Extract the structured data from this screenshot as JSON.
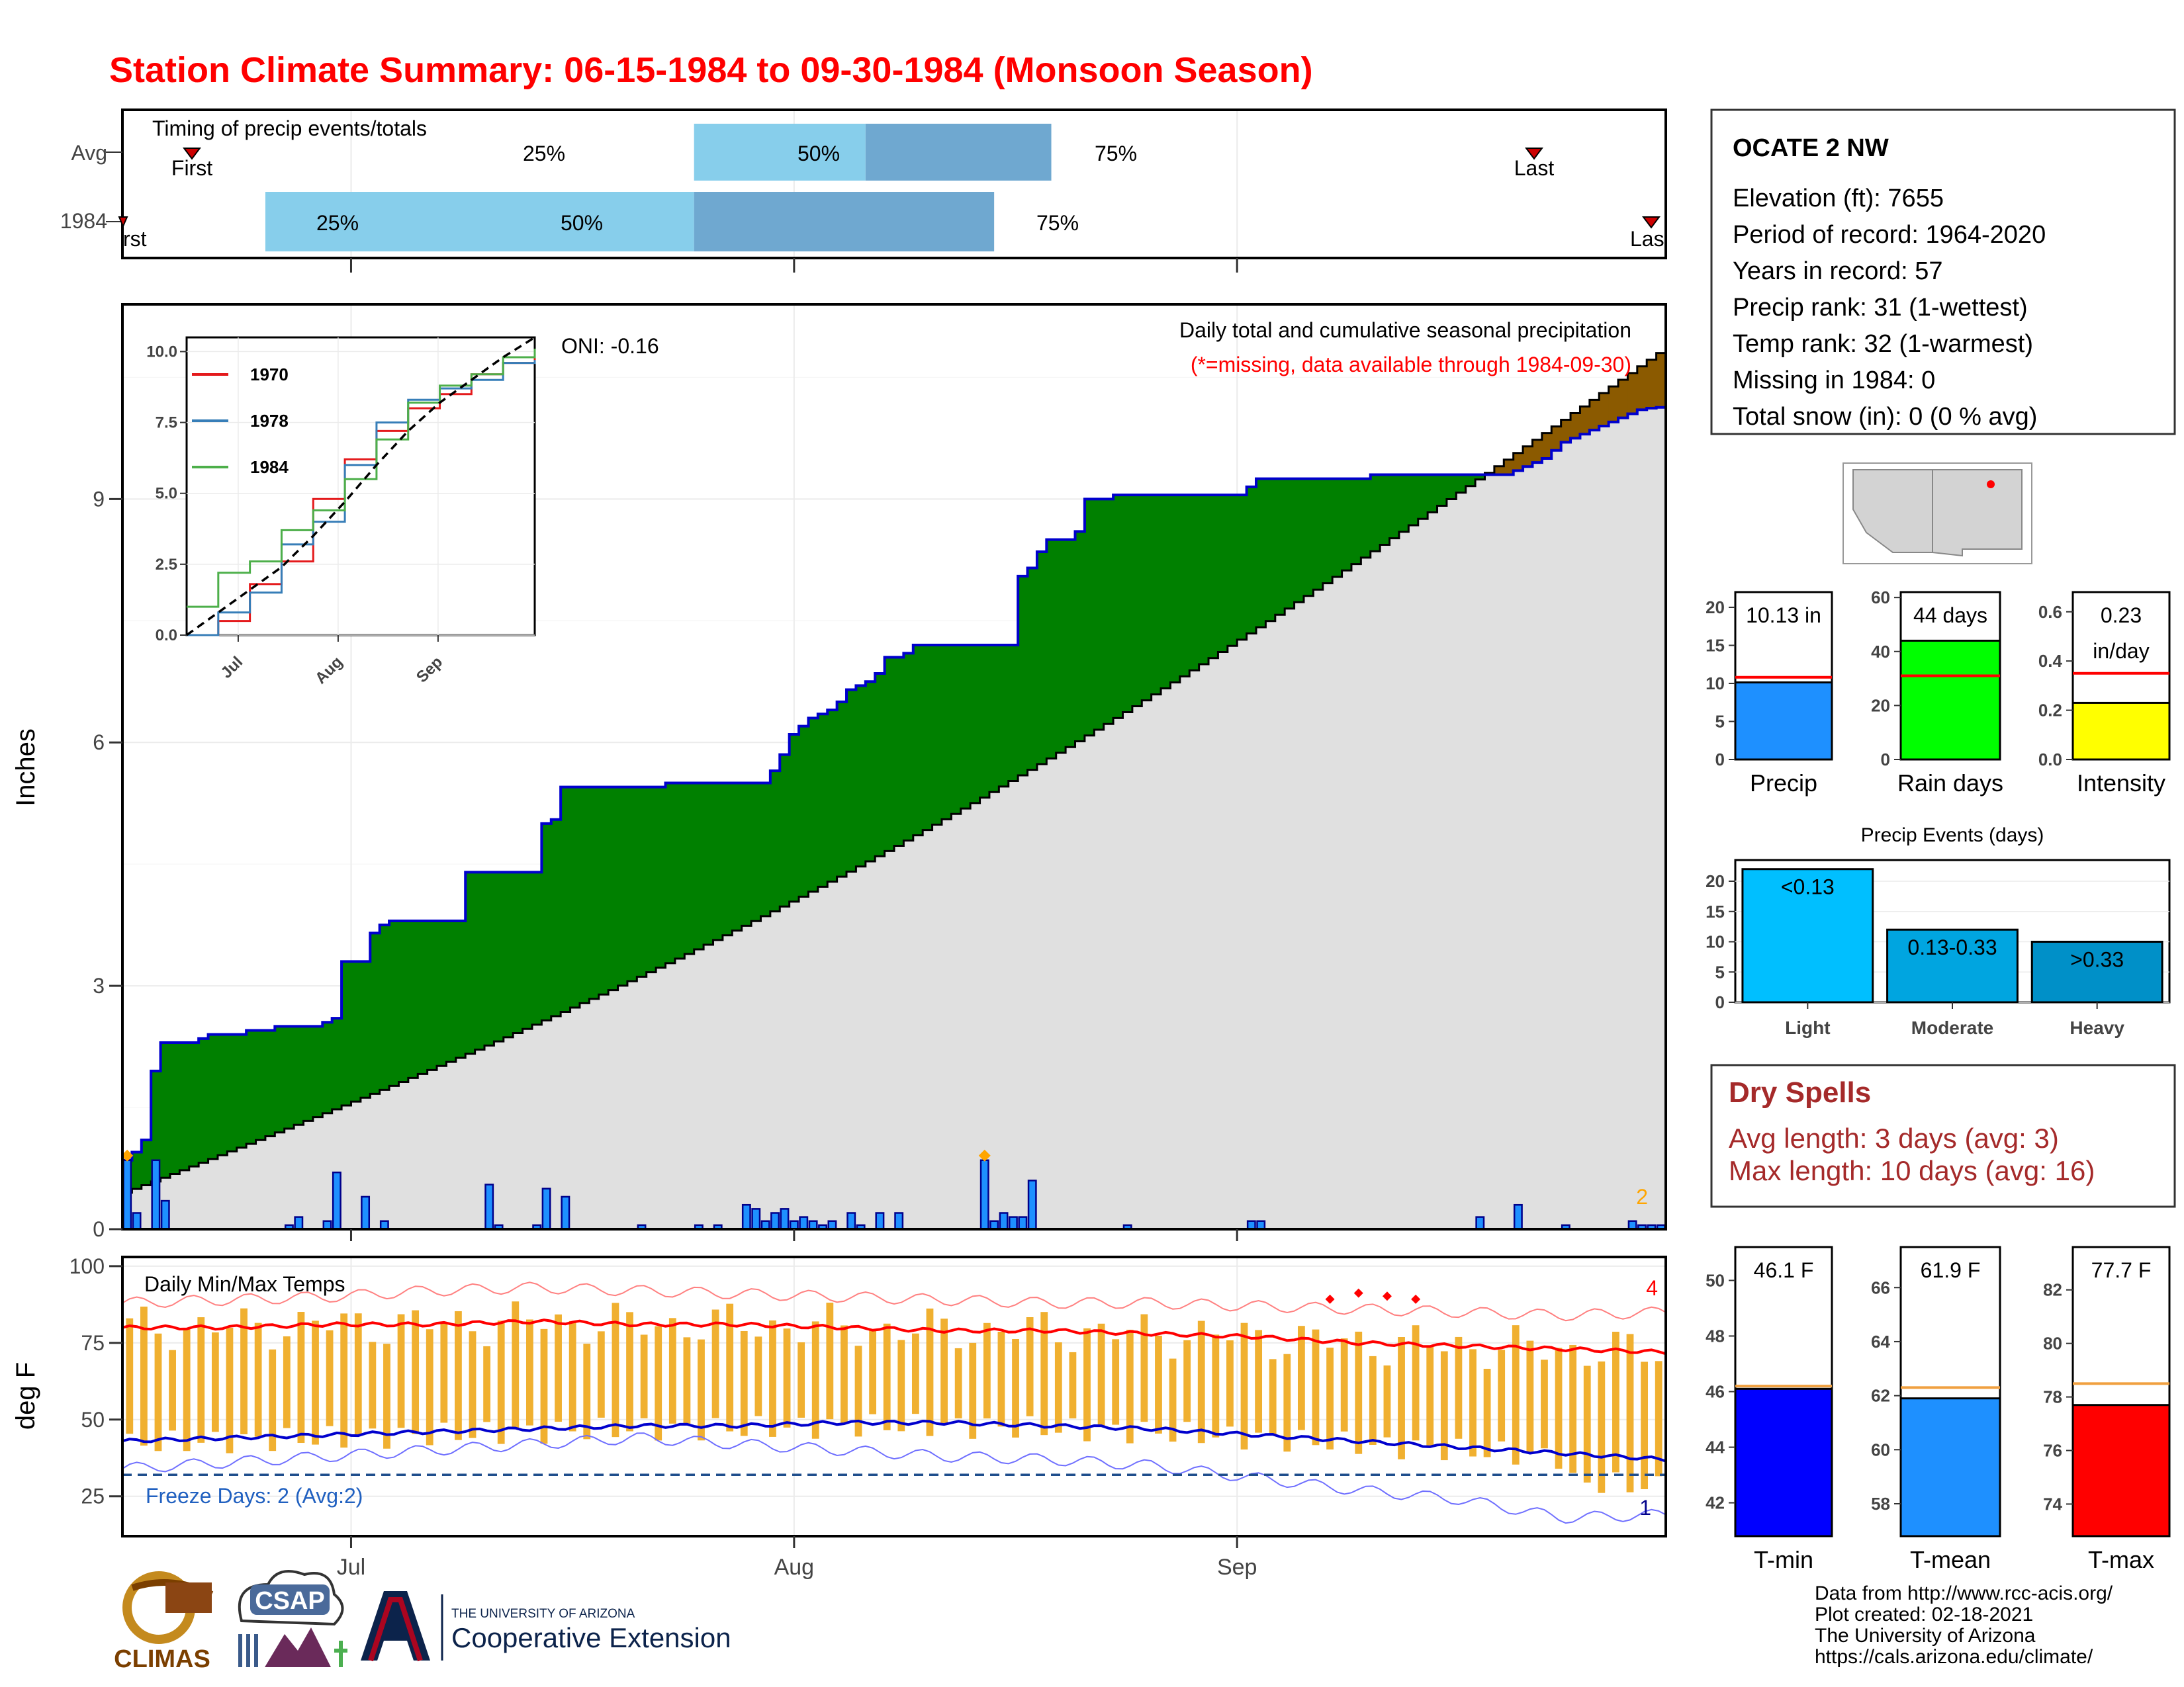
{
  "title": "Station Climate Summary: 06-15-1984 to 09-30-1984 (Monsoon Season)",
  "colors": {
    "title": "#ff0000",
    "light_blue": "#87ceeb",
    "mid_blue": "#6fa8d0",
    "green": "#008000",
    "brown": "#8b5a00",
    "gray_fill": "#e0e0e0",
    "avg_line_blue": "#0000cd",
    "bar_blue": "#1e90ff",
    "temp_orange": "#f0b030",
    "dry_spell_red": "#a52a2a"
  },
  "timing_panel": {
    "title": "Timing of precip events/totals",
    "row_labels": [
      "Avg",
      "1984"
    ],
    "avg": {
      "first": "First",
      "last": "Last",
      "q25": "25%",
      "q50": "50%",
      "q75": "75%"
    },
    "year": {
      "first": "rst",
      "last": "Las",
      "q25": "25%",
      "q50": "50%",
      "q75": "75%"
    }
  },
  "main_panel": {
    "ylabel": "Inches",
    "legend_title": "Daily total and cumulative seasonal precipitation",
    "missing_note": "(*=missing, data available through 1984-09-30)",
    "oni": "ONI: -0.16",
    "y_ticks": [
      "0",
      "3",
      "6",
      "9"
    ],
    "x_ticks": [
      "Jul",
      "Aug",
      "Sep"
    ],
    "corner_value": "2"
  },
  "inset": {
    "y_ticks": [
      "0.0",
      "2.5",
      "5.0",
      "7.5",
      "10.0"
    ],
    "x_ticks": [
      "Jul",
      "Aug",
      "Sep"
    ],
    "legend": [
      {
        "name": "1970",
        "color": "#e41a1c"
      },
      {
        "name": "1978",
        "color": "#377eb8"
      },
      {
        "name": "1984",
        "color": "#4daf4a"
      }
    ]
  },
  "temp_panel": {
    "title": "Daily Min/Max Temps",
    "ylabel": "deg F",
    "y_ticks": [
      "25",
      "50",
      "75",
      "100"
    ],
    "freeze_note": "Freeze Days: 2 (Avg:2)",
    "record_high_count": "4",
    "record_low_count": "1"
  },
  "station_info": {
    "name": "OCATE 2 NW",
    "lines": [
      "Elevation (ft): 7655",
      "Period of record: 1964-2020",
      "Years in record: 57",
      "Precip rank: 31 (1-wettest)",
      "Temp rank: 32 (1-warmest)",
      "Missing in 1984: 0",
      "Total snow (in): 0 (0 % avg)"
    ]
  },
  "summary_bars": [
    {
      "label": "Precip",
      "value_text": "10.13 in",
      "value": 10.13,
      "avg": 10.8,
      "ymax": 22,
      "ticks": [
        "0",
        "5",
        "10",
        "15",
        "20"
      ],
      "tick_values": [
        0,
        5,
        10,
        15,
        20
      ],
      "color": "#1e90ff"
    },
    {
      "label": "Rain days",
      "value_text": "44 days",
      "value": 44,
      "avg": 31,
      "ymax": 62,
      "ticks": [
        "0",
        "20",
        "40",
        "60"
      ],
      "tick_values": [
        0,
        20,
        40,
        60
      ],
      "color": "#00ff00"
    },
    {
      "label": "Intensity",
      "value_text": "0.23",
      "value_text2": "in/day",
      "value": 0.23,
      "avg": 0.35,
      "ymax": 0.68,
      "ticks": [
        "0.0",
        "0.2",
        "0.4",
        "0.6"
      ],
      "tick_values": [
        0,
        0.2,
        0.4,
        0.6
      ],
      "color": "#ffff00"
    }
  ],
  "precip_events": {
    "title": "Precip Events (days)",
    "categories": [
      "Light",
      "Moderate",
      "Heavy"
    ],
    "bar_labels": [
      "<0.13",
      "0.13-0.33",
      ">0.33"
    ],
    "values": [
      22,
      12,
      10
    ],
    "ticks": [
      "0",
      "5",
      "10",
      "15",
      "20"
    ],
    "colors": [
      "#00bfff",
      "#00a5e0",
      "#0090c8"
    ]
  },
  "dry_spells": {
    "title": "Dry Spells",
    "lines": [
      "Avg length: 3 days (avg: 3)",
      "Max length: 10 days (avg: 16)"
    ]
  },
  "temp_bars": [
    {
      "label": "T-min",
      "value_text": "46.1 F",
      "value": 46.1,
      "avg": 46.2,
      "ymin": 40.8,
      "ymax": 51.2,
      "ticks": [
        "42",
        "44",
        "46",
        "48",
        "50"
      ],
      "tick_values": [
        42,
        44,
        46,
        48,
        50
      ],
      "color": "#0000ff"
    },
    {
      "label": "T-mean",
      "value_text": "61.9 F",
      "value": 61.9,
      "avg": 62.3,
      "ymin": 56.8,
      "ymax": 67.5,
      "ticks": [
        "58",
        "60",
        "62",
        "64",
        "66"
      ],
      "tick_values": [
        58,
        60,
        62,
        64,
        66
      ],
      "color": "#1e90ff"
    },
    {
      "label": "T-max",
      "value_text": "77.7 F",
      "value": 77.7,
      "avg": 78.5,
      "ymin": 72.8,
      "ymax": 83.6,
      "ticks": [
        "74",
        "76",
        "78",
        "80",
        "82"
      ],
      "tick_values": [
        74,
        76,
        78,
        80,
        82
      ],
      "color": "#ff0000"
    }
  ],
  "footer": {
    "lines": [
      "Data from http://www.rcc-acis.org/",
      "Plot created: 02-18-2021",
      "The University of Arizona",
      "https://cals.arizona.edu/climate/"
    ],
    "logos": {
      "climas": "CLIMAS",
      "csap": "CSAP",
      "ua_small": "THE UNIVERSITY OF ARIZONA",
      "ua_big": "Cooperative Extension"
    }
  },
  "chart_data": [
    {
      "type": "bar",
      "title": "Timing of precip events/totals",
      "categories": [
        "Avg",
        "1984"
      ],
      "x_ticks": [
        "Jul",
        "Aug",
        "Sep"
      ],
      "series": [
        {
          "name": "Avg",
          "values": {
            "first": "06-18",
            "q25": "07-25",
            "q50": "08-06",
            "q75": "08-19",
            "last": "09-19"
          }
        },
        {
          "name": "1984",
          "values": {
            "first": "06-15",
            "q25": "06-25",
            "q50": "07-25",
            "q75": "08-15",
            "last": "09-30"
          }
        }
      ]
    },
    {
      "type": "area",
      "title": "Daily total and cumulative seasonal precipitation",
      "ylabel": "Inches",
      "ylim": [
        0,
        11.4
      ],
      "x_ticks": [
        "Jul",
        "Aug",
        "Sep"
      ],
      "series": [
        {
          "name": "1984 cumulative",
          "values": [
            0.85,
            0.95,
            1.1,
            1.95,
            2.3,
            2.3,
            2.3,
            2.3,
            2.35,
            2.4,
            2.4,
            2.4,
            2.4,
            2.45,
            2.45,
            2.45,
            2.5,
            2.5,
            2.5,
            2.5,
            2.5,
            2.55,
            2.6,
            3.3,
            3.3,
            3.3,
            3.65,
            3.75,
            3.8,
            3.8,
            3.8,
            3.8,
            3.8,
            3.8,
            3.8,
            3.8,
            4.4,
            4.4,
            4.4,
            4.4,
            4.4,
            4.4,
            4.4,
            4.4,
            5.0,
            5.05,
            5.45,
            5.45,
            5.45,
            5.45,
            5.45,
            5.45,
            5.45,
            5.45,
            5.45,
            5.45,
            5.45,
            5.5,
            5.5,
            5.5,
            5.5,
            5.5,
            5.5,
            5.5,
            5.5,
            5.5,
            5.5,
            5.5,
            5.65,
            5.85,
            6.1,
            6.2,
            6.3,
            6.35,
            6.4,
            6.5,
            6.65,
            6.7,
            6.75,
            6.85,
            7.05,
            7.05,
            7.1,
            7.2,
            7.2,
            7.2,
            7.2,
            7.2,
            7.2,
            7.2,
            7.2,
            7.2,
            7.2,
            7.2,
            8.05,
            8.15,
            8.35,
            8.5,
            8.5,
            8.5,
            8.6,
            9.0,
            9.0,
            9.0,
            9.05,
            9.05,
            9.05,
            9.05,
            9.05,
            9.05,
            9.05,
            9.05,
            9.05,
            9.05,
            9.05,
            9.05,
            9.05,
            9.05,
            9.15,
            9.25,
            9.25,
            9.25,
            9.25,
            9.25,
            9.25,
            9.25,
            9.25,
            9.25,
            9.25,
            9.25,
            9.25,
            9.3,
            9.3,
            9.3,
            9.3,
            9.3,
            9.3,
            9.3,
            9.3,
            9.3,
            9.3,
            9.3,
            9.3,
            9.3,
            9.3,
            9.3,
            9.35,
            9.4,
            9.45,
            9.5,
            9.6,
            9.7,
            9.75,
            9.8,
            9.85,
            9.9,
            9.95,
            10.0,
            10.05,
            10.1,
            10.12,
            10.13
          ]
        },
        {
          "name": "Average cumulative",
          "ylim_note": "from 0.45 to 10.8 inches"
        },
        {
          "name": "Daily precipitation",
          "values": [
            0.85,
            0.2,
            0,
            0.85,
            0.35,
            0,
            0,
            0,
            0,
            0,
            0,
            0,
            0,
            0,
            0,
            0,
            0,
            0.05,
            0.15,
            0,
            0,
            0.1,
            0.7,
            0,
            0,
            0.4,
            0,
            0.1,
            0,
            0,
            0,
            0,
            0,
            0,
            0,
            0,
            0,
            0,
            0.55,
            0.05,
            0,
            0,
            0,
            0.05,
            0.5,
            0,
            0.4,
            0,
            0,
            0,
            0,
            0,
            0,
            0,
            0.05,
            0,
            0,
            0,
            0,
            0,
            0.05,
            0,
            0.05,
            0,
            0,
            0.3,
            0.25,
            0.1,
            0.2,
            0.25,
            0.1,
            0.15,
            0.1,
            0.05,
            0.1,
            0,
            0.2,
            0.05,
            0,
            0.2,
            0,
            0.2,
            0,
            0,
            0,
            0,
            0,
            0,
            0,
            0,
            0.85,
            0.1,
            0.2,
            0.15,
            0.15,
            0.6,
            0,
            0,
            0,
            0,
            0,
            0,
            0,
            0,
            0,
            0.05,
            0,
            0,
            0,
            0,
            0,
            0,
            0,
            0,
            0,
            0,
            0,
            0,
            0.1,
            0.1,
            0,
            0,
            0,
            0,
            0,
            0,
            0,
            0,
            0,
            0,
            0,
            0,
            0,
            0,
            0,
            0,
            0,
            0,
            0,
            0,
            0,
            0,
            0.15,
            0,
            0,
            0,
            0.3,
            0,
            0,
            0,
            0,
            0.05,
            0,
            0,
            0,
            0,
            0,
            0,
            0.1,
            0.05,
            0.05,
            0.05
          ]
        }
      ]
    },
    {
      "type": "line",
      "title": "",
      "x_ticks": [
        "Jul",
        "Aug",
        "Sep"
      ],
      "ylim": [
        0,
        10.5
      ],
      "series": [
        {
          "name": "1970",
          "values": [
            0.0,
            0.5,
            1.8,
            2.6,
            4.8,
            6.2,
            7.2,
            8.0,
            8.5,
            9.2,
            9.6,
            9.8
          ]
        },
        {
          "name": "1978",
          "values": [
            0.0,
            0.8,
            1.5,
            3.2,
            4.0,
            6.0,
            7.5,
            8.3,
            8.7,
            9.0,
            9.6,
            9.7
          ]
        },
        {
          "name": "1984",
          "values": [
            1.0,
            2.2,
            2.6,
            3.7,
            4.4,
            5.5,
            6.9,
            8.2,
            8.8,
            9.2,
            9.8,
            10.1
          ]
        },
        {
          "name": "Average",
          "values": [
            0.0,
            0.8,
            1.6,
            2.4,
            3.5,
            4.7,
            6.0,
            7.2,
            8.2,
            9.0,
            9.8,
            10.5
          ]
        }
      ]
    },
    {
      "type": "line",
      "title": "Daily Min/Max Temps",
      "ylabel": "deg F",
      "ylim": [
        12,
        103
      ],
      "x_ticks": [
        "Jul",
        "Aug",
        "Sep"
      ],
      "series": [
        {
          "name": "Avg max",
          "values": [
            80,
            80,
            81,
            81,
            82,
            81,
            81,
            80,
            79,
            79,
            78,
            77,
            75,
            74,
            73,
            72
          ]
        },
        {
          "name": "Avg min",
          "values": [
            43,
            44,
            45,
            46,
            47,
            48,
            48,
            49,
            49,
            48,
            47,
            45,
            43,
            41,
            39,
            37
          ]
        },
        {
          "name": "Record max",
          "values": [
            88,
            89,
            90,
            92,
            93,
            92,
            91,
            90,
            89,
            88,
            88,
            87,
            86,
            85,
            84,
            85
          ]
        },
        {
          "name": "Record min",
          "values": [
            34,
            36,
            38,
            40,
            42,
            44,
            42,
            40,
            38,
            37,
            35,
            31,
            27,
            24,
            18,
            19
          ]
        },
        {
          "name": "Freeze threshold",
          "values": [
            32
          ]
        }
      ]
    },
    {
      "type": "bar",
      "categories": [
        "Precip",
        "Rain days",
        "Intensity"
      ],
      "values": [
        10.13,
        44,
        0.23
      ]
    },
    {
      "type": "bar",
      "title": "Precip Events (days)",
      "categories": [
        "Light",
        "Moderate",
        "Heavy"
      ],
      "values": [
        22,
        12,
        10
      ]
    },
    {
      "type": "bar",
      "categories": [
        "T-min",
        "T-mean",
        "T-max"
      ],
      "values": [
        46.1,
        61.9,
        77.7
      ]
    }
  ]
}
